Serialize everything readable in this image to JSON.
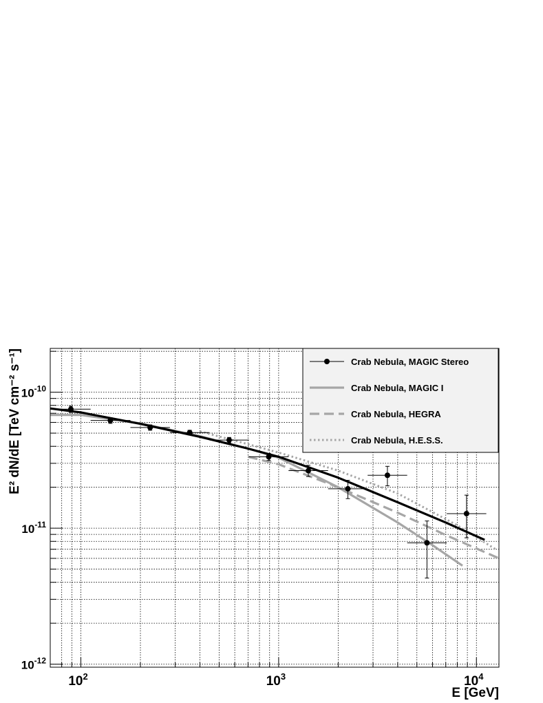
{
  "chart_data": {
    "type": "line",
    "x_scale": "log",
    "y_scale": "log",
    "xlim": [
      70,
      13000
    ],
    "ylim": [
      9.5e-13,
      2.1e-10
    ],
    "grid": true,
    "legend_placement": "top-right",
    "xlabel": "E [GeV]",
    "ylabel": "E² dN/dE [TeV cm⁻² s⁻¹]",
    "x_tick_labels": [
      {
        "value": 100,
        "base": "10",
        "exp": "2"
      },
      {
        "value": 1000,
        "base": "10",
        "exp": "3"
      },
      {
        "value": 10000,
        "base": "10",
        "exp": "4"
      }
    ],
    "y_tick_labels": [
      {
        "value": 1e-10,
        "base": "10",
        "exp": "-10"
      },
      {
        "value": 1e-11,
        "base": "10",
        "exp": "-11"
      },
      {
        "value": 1e-12,
        "base": "10",
        "exp": "-12"
      }
    ],
    "points": {
      "name": "Crab Nebula, MAGIC Stereo",
      "color": "#000000",
      "data": [
        {
          "x": 89,
          "y": 7.5e-11,
          "xlo": 70,
          "xhi": 112,
          "ylo": 7.1e-11,
          "yhi": 7.9e-11
        },
        {
          "x": 141,
          "y": 6.2e-11,
          "xlo": 112,
          "xhi": 178,
          "ylo": 5.9e-11,
          "yhi": 6.5e-11
        },
        {
          "x": 224,
          "y": 5.5e-11,
          "xlo": 178,
          "xhi": 282,
          "ylo": 5.25e-11,
          "yhi": 5.75e-11
        },
        {
          "x": 355,
          "y": 5.05e-11,
          "xlo": 282,
          "xhi": 447,
          "ylo": 4.85e-11,
          "yhi": 5.25e-11
        },
        {
          "x": 562,
          "y": 4.45e-11,
          "xlo": 447,
          "xhi": 708,
          "ylo": 4.25e-11,
          "yhi": 4.65e-11
        },
        {
          "x": 891,
          "y": 3.35e-11,
          "xlo": 708,
          "xhi": 1122,
          "ylo": 3.15e-11,
          "yhi": 3.55e-11
        },
        {
          "x": 1413,
          "y": 2.65e-11,
          "xlo": 1122,
          "xhi": 1778,
          "ylo": 2.4e-11,
          "yhi": 2.9e-11
        },
        {
          "x": 2239,
          "y": 1.95e-11,
          "xlo": 1778,
          "xhi": 2818,
          "ylo": 1.65e-11,
          "yhi": 2.25e-11
        },
        {
          "x": 3548,
          "y": 2.45e-11,
          "xlo": 2818,
          "xhi": 4467,
          "ylo": 2.05e-11,
          "yhi": 2.85e-11
        },
        {
          "x": 5623,
          "y": 7.8e-12,
          "xlo": 4467,
          "xhi": 7079,
          "ylo": 4.3e-12,
          "yhi": 1.13e-11
        },
        {
          "x": 8913,
          "y": 1.28e-11,
          "xlo": 7079,
          "xhi": 11220,
          "ylo": 8.5e-12,
          "yhi": 1.75e-11
        }
      ]
    },
    "series": [
      {
        "name": "Crab Nebula, MAGIC Stereo",
        "style": "solid-thick",
        "color": "#000000",
        "x": [
          70,
          100,
          200,
          400,
          700,
          1000,
          2000,
          4000,
          7000,
          11000
        ],
        "y": [
          7.6e-11,
          7.1e-11,
          5.85e-11,
          4.7e-11,
          3.85e-11,
          3.35e-11,
          2.35e-11,
          1.55e-11,
          1.1e-11,
          8.2e-12
        ]
      },
      {
        "name": "Crab Nebula, MAGIC I",
        "style": "solid",
        "color": "#a6a6a6",
        "x": [
          70,
          100,
          200,
          400,
          700,
          1000,
          2000,
          4000,
          6000,
          8500
        ],
        "y": [
          6.8e-11,
          6.8e-11,
          5.9e-11,
          4.75e-11,
          3.85e-11,
          3.3e-11,
          2e-11,
          1.1e-11,
          7.5e-12,
          5.3e-12
        ]
      },
      {
        "name": "Crab Nebula, HEGRA",
        "style": "dashed",
        "color": "#a6a6a6",
        "x": [
          700,
          1000,
          2000,
          4000,
          7000,
          13000
        ],
        "y": [
          3.35e-11,
          2.95e-11,
          2e-11,
          1.3e-11,
          8.9e-12,
          6e-12
        ]
      },
      {
        "name": "Crab Nebula, H.E.S.S.",
        "style": "dotted",
        "color": "#a6a6a6",
        "x": [
          400,
          700,
          1000,
          2000,
          4000,
          8000,
          12500
        ],
        "y": [
          5.15e-11,
          4.15e-11,
          3.6e-11,
          2.65e-11,
          1.8e-11,
          1.05e-11,
          7e-12
        ]
      }
    ]
  }
}
